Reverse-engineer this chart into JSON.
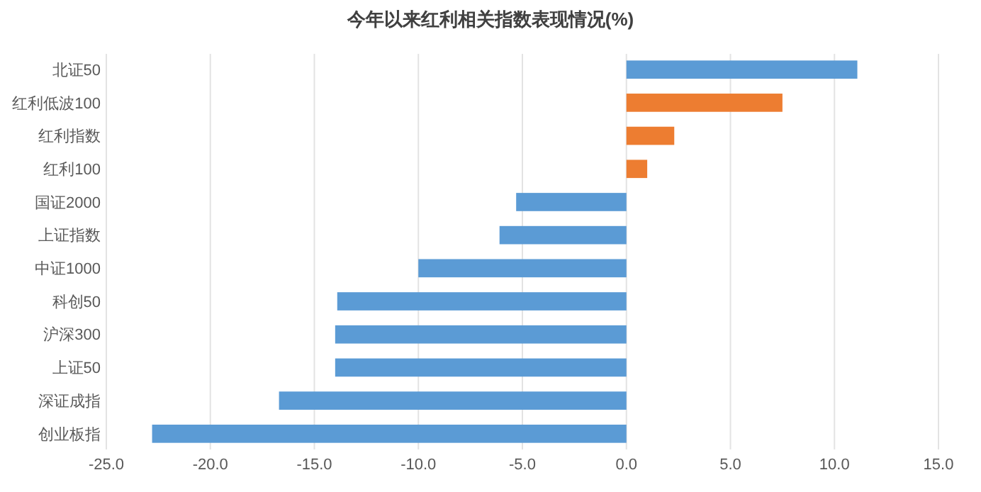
{
  "chart_data": {
    "type": "bar",
    "orientation": "horizontal",
    "title": "今年以来红利相关指数表现情况(%)",
    "categories": [
      "北证50",
      "红利低波100",
      "红利指数",
      "红利100",
      "国证2000",
      "上证指数",
      "中证1000",
      "科创50",
      "沪深300",
      "上证50",
      "深证成指",
      "创业板指"
    ],
    "values": [
      11.1,
      7.5,
      2.3,
      1.0,
      -5.3,
      -6.1,
      -10.0,
      -13.9,
      -14.0,
      -14.0,
      -16.7,
      -22.8
    ],
    "colors": [
      "#5b9bd5",
      "#ed7d31",
      "#ed7d31",
      "#ed7d31",
      "#5b9bd5",
      "#5b9bd5",
      "#5b9bd5",
      "#5b9bd5",
      "#5b9bd5",
      "#5b9bd5",
      "#5b9bd5",
      "#5b9bd5"
    ],
    "xlim": [
      -25,
      15
    ],
    "xticks": [
      {
        "value": -25,
        "label": "-25.0"
      },
      {
        "value": -20,
        "label": "-20.0"
      },
      {
        "value": -15,
        "label": "-15.0"
      },
      {
        "value": -10,
        "label": "-10.0"
      },
      {
        "value": -5,
        "label": "-5.0"
      },
      {
        "value": 0,
        "label": "0.0"
      },
      {
        "value": 5,
        "label": "5.0"
      },
      {
        "value": 10,
        "label": "10.0"
      },
      {
        "value": 15,
        "label": "15.0"
      }
    ],
    "grid": "x"
  }
}
